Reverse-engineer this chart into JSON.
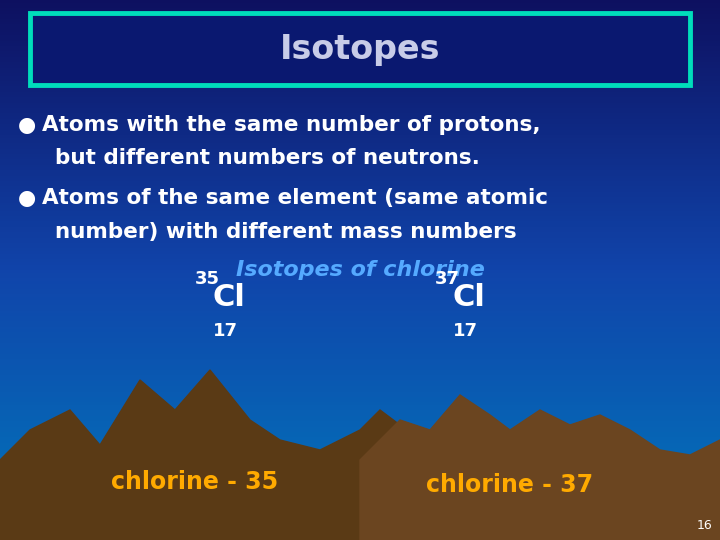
{
  "title": "Isotopes",
  "bg_top_color": "#0d1060",
  "bg_bottom_color": "#0077bb",
  "bg_mid_color": "#1044aa",
  "title_box_edge": "#00ddbb",
  "title_box_face": "#0a1870",
  "title_text_color": "#c8cce8",
  "bullet_text_color": "#ffffff",
  "bullet_color": "#ffffff",
  "isotope_label_color": "#55aaff",
  "isotope_label": "Isotopes of chlorine",
  "cl35_main": "Cl",
  "cl35_super": "35",
  "cl35_sub": "17",
  "cl37_main": "Cl",
  "cl37_super": "37",
  "cl37_sub": "17",
  "cl_text_color": "#ffffff",
  "chlorine35_label": "chlorine - 35",
  "chlorine37_label": "chlorine - 37",
  "chlorine_label_color": "#ffaa00",
  "bullet1_line1": "Atoms with the same number of protons,",
  "bullet1_line2": "but different numbers of neutrons.",
  "bullet2_line1": "Atoms of the same element (same atomic",
  "bullet2_line2": "number) with different mass numbers",
  "page_num": "16",
  "mountain_color1": "#5a3a15",
  "mountain_color2": "#6b4520",
  "teal_color": "#00ccbb",
  "horizon_color": "#0099cc"
}
